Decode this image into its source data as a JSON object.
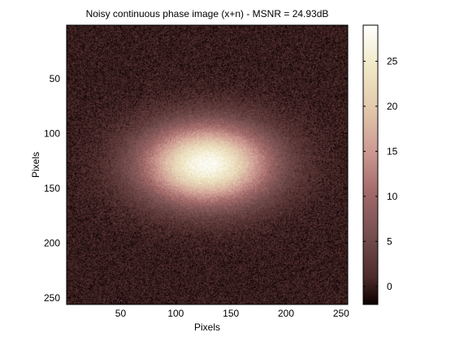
{
  "chart_data": {
    "type": "heatmap",
    "title": "Noisy continuous phase image (x+n) - MSNR = 24.93dB",
    "xlabel": "Pixels",
    "ylabel": "Pixels",
    "xlim": [
      1,
      256
    ],
    "ylim": [
      256,
      1
    ],
    "x_ticks": [
      50,
      100,
      150,
      200,
      250
    ],
    "y_ticks": [
      50,
      100,
      150,
      200,
      250
    ],
    "colorbar": {
      "range": [
        -2,
        29
      ],
      "ticks": [
        0,
        5,
        10,
        15,
        20,
        25
      ],
      "colormap": "pink"
    },
    "field": {
      "shape": "elliptical gaussian peak plus noise",
      "center_x": 128,
      "center_y": 128,
      "sigma_x": 40,
      "sigma_y": 25,
      "peak_value": 28,
      "background_value": 0,
      "noise_std": 1.2
    }
  }
}
